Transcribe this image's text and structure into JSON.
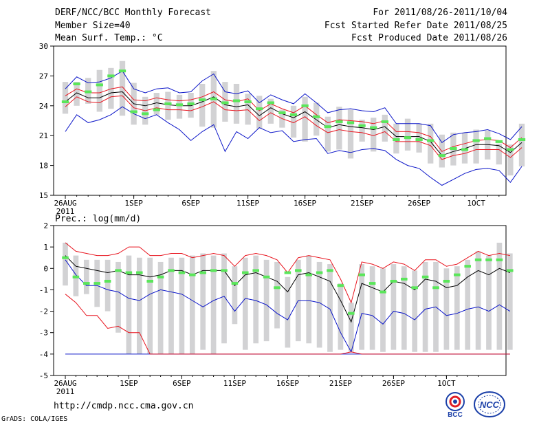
{
  "header": {
    "title": "DERF/NCC/BCC Monthly Forecast",
    "member_size": "Member Size=40",
    "variable": "Mean Surf. Temp.: °C",
    "period": "For 2011/08/26-2011/10/04",
    "started": "Fcst Started Refer Date 2011/08/25",
    "produced": "Fcst Produced Date 2011/08/26"
  },
  "footer": {
    "url": "http://cmdp.ncc.cma.gov.cn",
    "grads": "GrADS: COLA/IGES",
    "logo_bcc": "BCC",
    "logo_ncc": "NCC"
  },
  "colors": {
    "bar": "#d2d2d4",
    "mean": "#000000",
    "std": "#e8141e",
    "extreme": "#0a14c8",
    "obs": "#5ae65a"
  },
  "chart_data": [
    {
      "type": "box-line",
      "title": "Mean Surf. Temp.: °C",
      "ylim": [
        15,
        30
      ],
      "yticks": [
        15,
        18,
        21,
        24,
        27,
        30
      ],
      "xticks": [
        {
          "day": 0,
          "label": "26AUG",
          "sublabel": "2011"
        },
        {
          "day": 6,
          "label": "1SEP"
        },
        {
          "day": 11,
          "label": "6SEP"
        },
        {
          "day": 16,
          "label": "11SEP"
        },
        {
          "day": 21,
          "label": "16SEP"
        },
        {
          "day": 26,
          "label": "21SEP"
        },
        {
          "day": 31,
          "label": "26SEP"
        },
        {
          "day": 36,
          "label": "1OCT"
        }
      ],
      "ensemble_mean": [
        24.4,
        25.3,
        24.8,
        24.8,
        25.3,
        25.4,
        24.2,
        24.0,
        24.3,
        24.1,
        24.0,
        24.0,
        24.4,
        24.9,
        24.1,
        23.9,
        24.1,
        23.0,
        23.8,
        23.2,
        22.8,
        23.4,
        22.6,
        21.8,
        22.1,
        21.9,
        21.8,
        21.6,
        21.9,
        20.9,
        20.9,
        20.9,
        20.4,
        19.0,
        19.4,
        19.7,
        20.1,
        20.1,
        20.0,
        19.3,
        20.3
      ],
      "plus_std": [
        25.0,
        25.7,
        25.3,
        25.3,
        25.7,
        25.9,
        24.6,
        24.5,
        24.8,
        24.6,
        24.5,
        24.6,
        24.9,
        25.4,
        24.6,
        24.4,
        24.7,
        23.5,
        24.2,
        23.7,
        23.3,
        24.0,
        23.1,
        22.3,
        22.6,
        22.5,
        22.4,
        22.2,
        22.5,
        21.4,
        21.4,
        21.3,
        20.9,
        19.4,
        19.9,
        20.2,
        20.5,
        20.6,
        20.5,
        19.8,
        20.8
      ],
      "minus_std": [
        23.9,
        24.9,
        24.4,
        24.3,
        24.9,
        25.0,
        23.8,
        23.5,
        23.8,
        23.6,
        23.6,
        23.5,
        23.9,
        24.4,
        23.6,
        23.5,
        23.6,
        22.5,
        23.3,
        22.7,
        22.3,
        22.9,
        22.0,
        21.3,
        21.6,
        21.4,
        21.3,
        21.0,
        21.4,
        20.4,
        20.4,
        20.4,
        20.0,
        18.6,
        19.0,
        19.2,
        19.6,
        19.6,
        19.6,
        18.8,
        19.8
      ],
      "max": [
        25.7,
        26.9,
        26.3,
        26.4,
        26.8,
        27.5,
        25.7,
        25.3,
        25.7,
        25.8,
        25.3,
        25.4,
        26.5,
        27.2,
        25.4,
        25.2,
        25.5,
        24.3,
        25.1,
        24.6,
        24.2,
        25.2,
        24.3,
        23.3,
        23.6,
        23.7,
        23.5,
        23.4,
        23.8,
        22.2,
        22.2,
        22.2,
        22.0,
        20.3,
        21.1,
        21.3,
        21.4,
        21.6,
        21.2,
        20.6,
        21.9
      ],
      "min": [
        21.4,
        23.1,
        22.3,
        22.6,
        23.1,
        23.9,
        23.2,
        22.7,
        23.1,
        22.3,
        21.6,
        20.5,
        21.4,
        22.1,
        19.4,
        21.4,
        20.7,
        21.8,
        21.3,
        21.5,
        20.4,
        20.6,
        20.7,
        19.2,
        19.5,
        19.3,
        19.6,
        19.7,
        19.5,
        18.6,
        18.0,
        17.7,
        16.8,
        16.0,
        16.6,
        17.2,
        17.6,
        17.7,
        17.5,
        16.3,
        17.9
      ],
      "bar_top": [
        26.4,
        26.4,
        26.8,
        27.6,
        27.8,
        28.5,
        26.3,
        24.9,
        25.3,
        25.4,
        25.1,
        25.3,
        26.2,
        27.5,
        26.4,
        26.2,
        25.2,
        25.0,
        24.7,
        23.6,
        24.0,
        24.9,
        24.3,
        22.9,
        23.9,
        23.6,
        22.6,
        22.8,
        23.1,
        22.2,
        22.7,
        22.2,
        22.2,
        21.1,
        21.3,
        21.3,
        21.6,
        21.5,
        20.2,
        20.1,
        22.2
      ],
      "bar_bottom": [
        23.2,
        24.0,
        24.2,
        23.4,
        23.7,
        23.0,
        22.1,
        22.1,
        23.1,
        22.6,
        22.7,
        22.8,
        21.9,
        21.8,
        22.4,
        22.2,
        22.1,
        21.7,
        22.2,
        21.8,
        20.8,
        20.4,
        21.0,
        19.4,
        19.6,
        18.7,
        20.4,
        19.4,
        20.4,
        19.2,
        19.5,
        19.3,
        18.2,
        17.8,
        18.0,
        18.2,
        18.2,
        18.6,
        18.1,
        17.0,
        17.9
      ],
      "observed": [
        24.4,
        26.2,
        25.4,
        26.1,
        27.0,
        27.5,
        23.4,
        23.2,
        23.6,
        24.2,
        24.1,
        24.2,
        24.6,
        24.7,
        24.3,
        24.5,
        24.4,
        23.7,
        24.3,
        23.3,
        23.1,
        24.0,
        22.9,
        21.9,
        22.4,
        22.3,
        22.0,
        21.8,
        22.4,
        20.6,
        20.8,
        20.6,
        20.5,
        19.0,
        19.7,
        19.6,
        20.5,
        20.7,
        20.4,
        19.6,
        20.6
      ]
    },
    {
      "type": "box-line",
      "title": "Prec.: log(mm/d)",
      "ylim": [
        -5,
        2
      ],
      "yticks": [
        -5,
        -4,
        -3,
        -2,
        -1,
        0,
        1,
        2
      ],
      "xticks": [
        {
          "day": 0,
          "label": "26AUG",
          "sublabel": "2011"
        },
        {
          "day": 6,
          "label": "1SEP"
        },
        {
          "day": 11,
          "label": "6SEP"
        },
        {
          "day": 16,
          "label": "11SEP"
        },
        {
          "day": 21,
          "label": "16SEP"
        },
        {
          "day": 26,
          "label": "21SEP"
        },
        {
          "day": 31,
          "label": "26SEP"
        },
        {
          "day": 36,
          "label": "1OCT"
        }
      ],
      "ensemble_mean": [
        0.6,
        0.1,
        0.0,
        -0.1,
        -0.2,
        -0.1,
        -0.3,
        -0.3,
        -0.4,
        -0.3,
        -0.1,
        -0.1,
        -0.3,
        -0.1,
        -0.1,
        -0.1,
        -0.8,
        -0.3,
        -0.2,
        -0.4,
        -0.6,
        -1.1,
        -0.3,
        -0.2,
        -0.4,
        -0.6,
        -1.5,
        -2.5,
        -0.7,
        -0.9,
        -1.1,
        -0.6,
        -0.7,
        -1.0,
        -0.5,
        -0.6,
        -0.9,
        -0.8,
        -0.4,
        -0.1,
        -0.3,
        0.0,
        -0.2
      ],
      "plus_std": [
        1.2,
        0.8,
        0.7,
        0.6,
        0.6,
        0.7,
        1.0,
        1.0,
        0.6,
        0.6,
        0.7,
        0.7,
        0.5,
        0.6,
        0.7,
        0.6,
        0.1,
        0.6,
        0.7,
        0.6,
        0.4,
        -0.2,
        0.5,
        0.6,
        0.5,
        0.4,
        -0.5,
        -1.6,
        0.3,
        0.2,
        0.0,
        0.3,
        0.2,
        -0.1,
        0.4,
        0.4,
        0.1,
        0.2,
        0.5,
        0.8,
        0.6,
        0.7,
        0.6
      ],
      "minus_std": [
        -1.2,
        -1.6,
        -2.2,
        -2.2,
        -2.8,
        -2.7,
        -3.0,
        -3.0,
        -4.0,
        -4.0,
        -4.0,
        -4.0,
        -4.0,
        -4.0,
        -4.0,
        -4.0,
        -4.0,
        -4.0,
        -4.0,
        -4.0,
        -4.0,
        -4.0,
        -4.0,
        -4.0,
        -4.0,
        -4.0,
        -4.0,
        -3.9,
        -4.0,
        -4.0,
        -4.0,
        -4.0,
        -4.0,
        -4.0,
        -4.0,
        -4.0,
        -4.0,
        -4.0,
        -4.0,
        -4.0,
        -4.0,
        -4.0,
        -4.0
      ],
      "max": [
        0.4,
        -0.3,
        -0.8,
        -0.8,
        -1.0,
        -1.1,
        -1.4,
        -1.5,
        -1.2,
        -1.0,
        -1.1,
        -1.2,
        -1.5,
        -1.8,
        -1.5,
        -1.3,
        -2.0,
        -1.4,
        -1.5,
        -1.7,
        -2.1,
        -2.4,
        -1.5,
        -1.5,
        -1.6,
        -1.9,
        -3.0,
        -3.9,
        -2.1,
        -2.2,
        -2.6,
        -2.0,
        -2.1,
        -2.4,
        -1.9,
        -1.8,
        -2.2,
        -2.1,
        -1.9,
        -1.8,
        -2.0,
        -1.7,
        -2.0
      ],
      "min": [
        -4.0,
        -4.0,
        -4.0,
        -4.0,
        -4.0,
        -4.0,
        -4.0,
        -4.0,
        -4.0,
        -4.0,
        -4.0,
        -4.0,
        -4.0,
        -4.0,
        -4.0,
        -4.0,
        -4.0,
        -4.0,
        -4.0,
        -4.0,
        -4.0,
        -4.0,
        -4.0,
        -4.0,
        -4.0,
        -4.0,
        -4.0,
        -4.0,
        -4.0,
        -4.0,
        -4.0,
        -4.0,
        -4.0,
        -4.0,
        -4.0,
        -4.0,
        -4.0,
        -4.0,
        -4.0,
        -4.0,
        -4.0,
        -4.0,
        -4.0
      ],
      "bar_top": [
        1.2,
        0.6,
        0.4,
        0.4,
        0.4,
        0.3,
        0.6,
        0.5,
        0.5,
        0.3,
        0.5,
        0.5,
        0.6,
        0.7,
        0.6,
        0.7,
        0.1,
        0.5,
        0.6,
        0.4,
        0.3,
        -0.4,
        0.4,
        0.6,
        0.3,
        0.2,
        -0.7,
        -1.6,
        0.2,
        0.1,
        0.0,
        0.2,
        0.1,
        -0.1,
        0.3,
        0.3,
        0.0,
        0.1,
        0.4,
        0.8,
        0.6,
        1.2,
        0.7
      ],
      "bar_bottom": [
        -0.8,
        -1.3,
        -1.2,
        -1.8,
        -2.0,
        -3.0,
        -4.0,
        -4.0,
        -4.0,
        -4.0,
        -4.0,
        -4.0,
        -4.0,
        -3.8,
        -4.0,
        -3.5,
        -2.6,
        -3.8,
        -3.5,
        -3.4,
        -2.8,
        -3.7,
        -3.4,
        -3.5,
        -3.7,
        -3.9,
        -3.8,
        -3.9,
        -3.8,
        -3.8,
        -3.9,
        -3.8,
        -3.8,
        -3.9,
        -3.9,
        -3.9,
        -3.8,
        -3.8,
        -3.8,
        -3.8,
        -3.8,
        -3.8,
        -3.8
      ],
      "observed": [
        0.5,
        -0.4,
        -0.7,
        -0.7,
        -0.6,
        -0.1,
        -0.2,
        -0.2,
        -0.6,
        -0.4,
        -0.1,
        -0.2,
        -0.3,
        -0.2,
        -0.1,
        -0.1,
        -0.7,
        -0.2,
        -0.1,
        -0.4,
        -0.9,
        -0.2,
        -0.1,
        -0.3,
        -0.2,
        -0.1,
        -0.8,
        -2.1,
        -0.3,
        -0.7,
        -1.1,
        -0.6,
        -0.5,
        -0.9,
        -0.4,
        -0.9,
        -0.6,
        -0.3,
        0.1,
        0.4,
        0.4,
        0.4,
        -0.1
      ]
    }
  ]
}
